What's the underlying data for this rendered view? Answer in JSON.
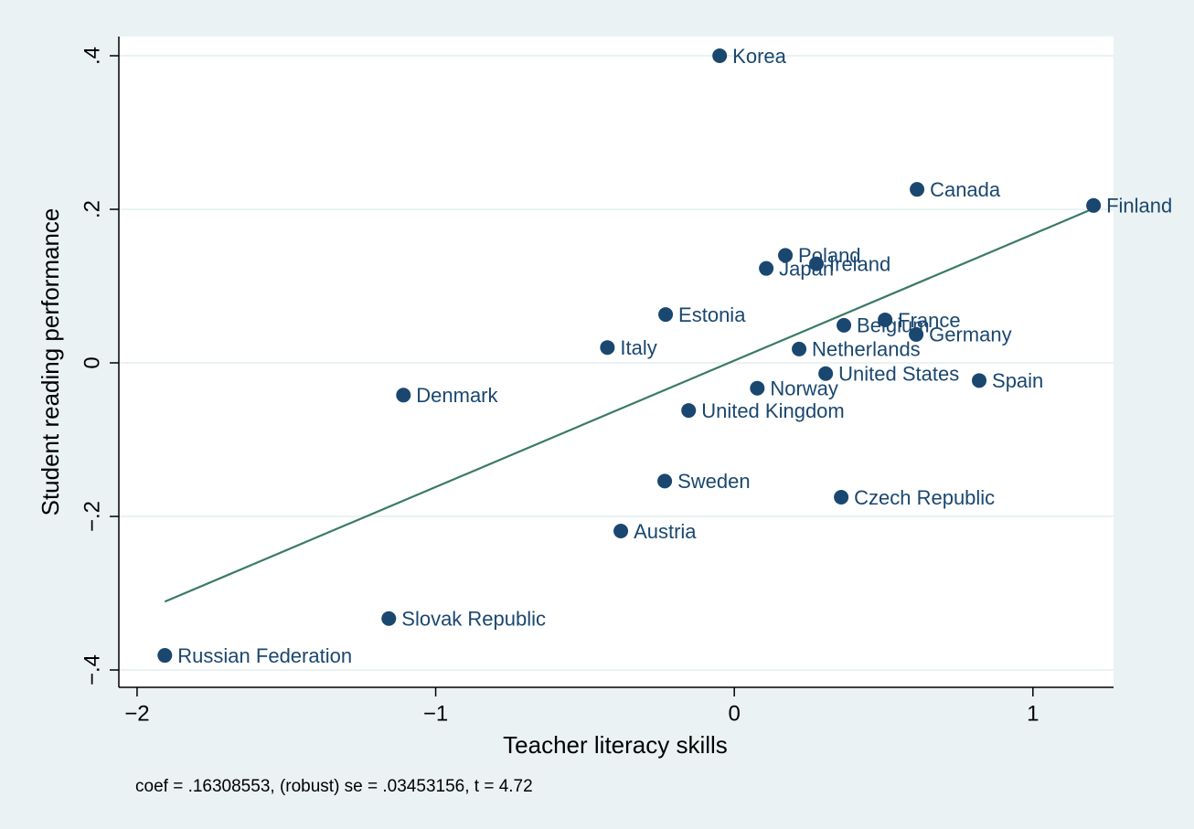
{
  "chart_data": {
    "type": "scatter",
    "xlabel": "Teacher literacy skills",
    "ylabel": "Student reading performance",
    "note": "coef = .16308553, (robust) se = .03453156, t = 4.72",
    "xlim": [
      -2.061,
      1.27
    ],
    "ylim": [
      -0.4226,
      0.425
    ],
    "xticks": [
      {
        "value": -2,
        "label": "−2"
      },
      {
        "value": -1,
        "label": "−1"
      },
      0,
      1
    ],
    "yticks": [
      {
        "value": -0.4,
        "label": "−.4"
      },
      {
        "value": -0.2,
        "label": "−.2"
      },
      0,
      {
        "value": 0.2,
        "label": ".2"
      },
      {
        "value": 0.4,
        "label": ".4"
      }
    ],
    "grid": true,
    "color": "#1a476f",
    "labels": [
      "Korea",
      "Canada",
      "Finland",
      "Poland",
      "Ireland",
      "Japan",
      "Estonia",
      "Belgium",
      "France",
      "Germany",
      "Italy",
      "Netherlands",
      "United States",
      "Spain",
      "Norway",
      "Denmark",
      "United Kingdom",
      "Sweden",
      "Czech Republic",
      "Austria",
      "Slovak Republic",
      "Russian Federation"
    ],
    "x": [
      -0.049,
      0.612,
      1.203,
      0.171,
      0.275,
      0.107,
      -0.23,
      0.367,
      0.505,
      0.609,
      -0.425,
      0.217,
      0.306,
      0.82,
      0.077,
      -1.108,
      -0.153,
      -0.233,
      0.358,
      -0.38,
      -1.157,
      -1.907
    ],
    "y": [
      0.4,
      0.226,
      0.205,
      0.14,
      0.129,
      0.123,
      0.063,
      0.049,
      0.056,
      0.037,
      0.02,
      0.018,
      -0.014,
      -0.023,
      -0.033,
      -0.042,
      -0.062,
      -0.154,
      -0.175,
      -0.219,
      -0.333,
      -0.381
    ],
    "fit": {
      "color": "#3a7a66",
      "x": [
        -1.907,
        1.203
      ],
      "y": [
        -0.311,
        0.201
      ]
    }
  }
}
